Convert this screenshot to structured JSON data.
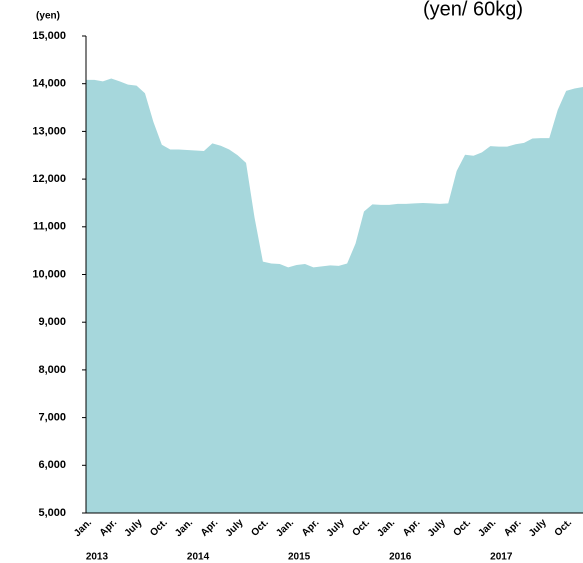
{
  "chart_data": {
    "type": "area",
    "title": "(yen/ 60kg)",
    "y_unit_label": "(yen)",
    "categories": [
      "Jan.",
      null,
      null,
      "Apr.",
      null,
      null,
      "July",
      null,
      null,
      "Oct.",
      null,
      null,
      "Jan.",
      null,
      null,
      "Apr.",
      null,
      null,
      "July",
      null,
      null,
      "Oct.",
      null,
      null,
      "Jan.",
      null,
      null,
      "Apr.",
      null,
      null,
      "July",
      null,
      null,
      "Oct.",
      null,
      null,
      "Jan.",
      null,
      null,
      "Apr.",
      null,
      null,
      "July",
      null,
      null,
      "Oct.",
      null,
      null,
      "Jan.",
      null,
      null,
      "Apr.",
      null,
      null,
      "July",
      null,
      null,
      "Oct.",
      null,
      null
    ],
    "years": [
      "2013",
      "2014",
      "2015",
      "2016",
      "2017"
    ],
    "values": [
      14080,
      14080,
      14050,
      14110,
      14050,
      13980,
      13960,
      13800,
      13200,
      12720,
      12620,
      12620,
      12610,
      12600,
      12590,
      12750,
      12700,
      12620,
      12500,
      12340,
      11200,
      10270,
      10230,
      10220,
      10150,
      10200,
      10220,
      10150,
      10170,
      10190,
      10180,
      10230,
      10650,
      11320,
      11470,
      11460,
      11460,
      11480,
      11480,
      11490,
      11500,
      11490,
      11480,
      11490,
      12170,
      12510,
      12490,
      12560,
      12690,
      12680,
      12680,
      12730,
      12760,
      12850,
      12860,
      12860,
      13450,
      13850,
      13900,
      13930
    ],
    "color": "#a6d7dc",
    "ylim": [
      5000,
      15000
    ],
    "yticks": [
      {
        "value": 5000,
        "label": "5,000"
      },
      {
        "value": 6000,
        "label": "6,000"
      },
      {
        "value": 7000,
        "label": "7,000"
      },
      {
        "value": 8000,
        "label": "8,000"
      },
      {
        "value": 9000,
        "label": "9,000"
      },
      {
        "value": 10000,
        "label": "10,000"
      },
      {
        "value": 11000,
        "label": "11,000"
      },
      {
        "value": 12000,
        "label": "12,000"
      },
      {
        "value": 13000,
        "label": "13,000"
      },
      {
        "value": 14000,
        "label": "14,000"
      },
      {
        "value": 15000,
        "label": "15,000"
      }
    ]
  }
}
